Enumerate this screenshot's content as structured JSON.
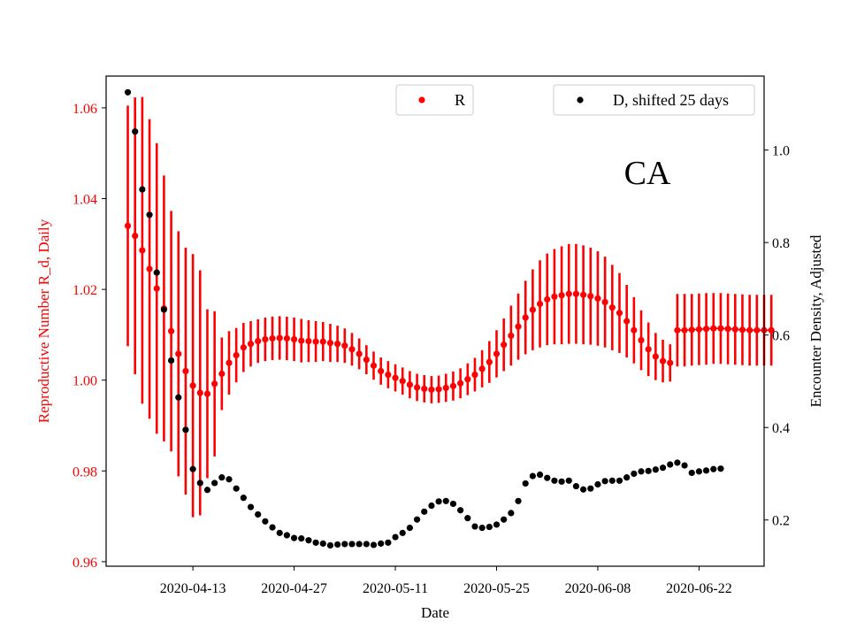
{
  "chart_data": {
    "type": "scatter",
    "title": "",
    "annotation": "CA",
    "xlabel": "Date",
    "ylabel_left": "Reproductive Number R_d, Daily",
    "ylabel_right": "Encounter Density, Adjusted",
    "x_ticks": [
      "2020-04-13",
      "2020-04-27",
      "2020-05-11",
      "2020-05-25",
      "2020-06-08",
      "2020-06-22"
    ],
    "x_range": [
      "2020-04-01",
      "2020-07-01"
    ],
    "y_left_ticks": [
      "0.96",
      "0.98",
      "1.00",
      "1.02",
      "1.04",
      "1.06"
    ],
    "y_left_range": [
      0.959,
      1.067
    ],
    "y_right_ticks": [
      "0.2",
      "0.4",
      "0.6",
      "0.8",
      "1.0"
    ],
    "y_right_range": [
      0.1,
      1.16
    ],
    "grid": false,
    "colors": {
      "R": "#ff0000",
      "D": "#000000",
      "left_axis": "#ff0000",
      "right_axis": "#000000"
    },
    "series": [
      {
        "name": "R",
        "axis": "left",
        "x_start": "2020-04-04",
        "step_days": 1,
        "y": [
          1.034,
          1.0318,
          1.0286,
          1.0245,
          1.0202,
          1.0158,
          1.0108,
          1.0058,
          1.002,
          0.9988,
          0.9972,
          0.997,
          0.9992,
          1.0014,
          1.0038,
          1.0055,
          1.0072,
          1.008,
          1.0086,
          1.009,
          1.0092,
          1.0093,
          1.0092,
          1.009,
          1.0087,
          1.0086,
          1.0085,
          1.0085,
          1.0082,
          1.008,
          1.0076,
          1.0068,
          1.0058,
          1.0045,
          1.0032,
          1.002,
          1.0012,
          1.0005,
          0.9998,
          0.999,
          0.9984,
          0.9981,
          0.9979,
          0.998,
          0.9983,
          0.9987,
          0.9993,
          1.0002,
          1.0012,
          1.0025,
          1.004,
          1.0058,
          1.0078,
          1.0098,
          1.0118,
          1.0138,
          1.0155,
          1.0168,
          1.0178,
          1.0184,
          1.0187,
          1.019,
          1.019,
          1.0188,
          1.0185,
          1.018,
          1.0172,
          1.016,
          1.0148,
          1.013,
          1.011,
          1.0088,
          1.0068,
          1.0052,
          1.0042,
          1.0038
        ],
        "error": [
          0.0265,
          0.0305,
          0.0338,
          0.033,
          0.032,
          0.0293,
          0.0265,
          0.027,
          0.0272,
          0.029,
          0.027,
          0.0186,
          0.016,
          0.008,
          0.007,
          0.006,
          0.0054,
          0.005,
          0.0048,
          0.0048,
          0.0048,
          0.0048,
          0.0048,
          0.0048,
          0.0048,
          0.0046,
          0.0045,
          0.0043,
          0.0042,
          0.004,
          0.0038,
          0.0036,
          0.0034,
          0.0032,
          0.0031,
          0.003,
          0.003,
          0.003,
          0.003,
          0.003,
          0.003,
          0.003,
          0.003,
          0.003,
          0.0031,
          0.0032,
          0.0033,
          0.0035,
          0.0037,
          0.0041,
          0.0046,
          0.0052,
          0.0058,
          0.0066,
          0.0073,
          0.0081,
          0.0089,
          0.0096,
          0.0101,
          0.0105,
          0.0108,
          0.011,
          0.011,
          0.0109,
          0.0107,
          0.0104,
          0.01,
          0.0094,
          0.0088,
          0.008,
          0.0073,
          0.0066,
          0.0059,
          0.0052,
          0.0047,
          0.0041
        ]
      },
      {
        "name": "R",
        "axis": "left",
        "x_start": "2020-06-19",
        "step_days": 1,
        "y": [
          1.011,
          1.011,
          1.0111,
          1.0112,
          1.0113,
          1.0114,
          1.0114,
          1.0113,
          1.0112,
          1.0111,
          1.011,
          1.011,
          1.011,
          1.011
        ],
        "error": [
          0.008,
          0.008,
          0.0079,
          0.0079,
          0.0079,
          0.0078,
          0.0078,
          0.0078,
          0.0078,
          0.0078,
          0.0078,
          0.0078,
          0.0078,
          0.0078
        ]
      },
      {
        "name": "D, shifted 25 days",
        "axis": "right",
        "x_start": "2020-04-04",
        "step_days": 1,
        "y": [
          1.125,
          1.04,
          0.915,
          0.86,
          0.735,
          0.655,
          0.545,
          0.465,
          0.395,
          0.31,
          0.28,
          0.265,
          0.28,
          0.292,
          0.288,
          0.268,
          0.248,
          0.228,
          0.212,
          0.197,
          0.184,
          0.172,
          0.167,
          0.161,
          0.16,
          0.156,
          0.151,
          0.149,
          0.145,
          0.147,
          0.148,
          0.148,
          0.148,
          0.148,
          0.146,
          0.149,
          0.151,
          0.163,
          0.172,
          0.183,
          0.201,
          0.218,
          0.231,
          0.24,
          0.241,
          0.235,
          0.221,
          0.204,
          0.186,
          0.183,
          0.185,
          0.19,
          0.201,
          0.215,
          0.241,
          0.279,
          0.295,
          0.298,
          0.291,
          0.285,
          0.283,
          0.285,
          0.273,
          0.266,
          0.268,
          0.277,
          0.284,
          0.285,
          0.285,
          0.292,
          0.3,
          0.305,
          0.306,
          0.309,
          0.313,
          0.32,
          0.324,
          0.318,
          0.302,
          0.305,
          0.307,
          0.31,
          0.311
        ]
      }
    ],
    "legend": [
      {
        "label": "R",
        "color": "#ff0000",
        "placement": "upper-center"
      },
      {
        "label": "D, shifted 25 days",
        "color": "#000000",
        "placement": "upper-right"
      }
    ]
  }
}
